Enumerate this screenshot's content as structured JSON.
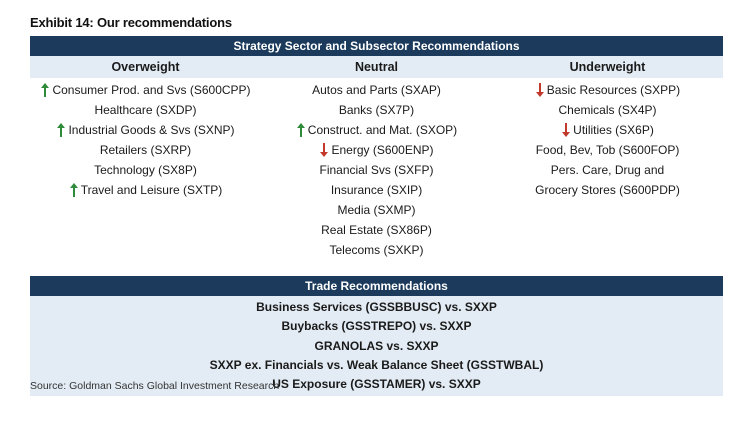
{
  "exhibit_title": "Exhibit 14: Our recommendations",
  "strategy_header": "Strategy Sector and Subsector Recommendations",
  "columns": [
    {
      "header": "Overweight",
      "items": [
        {
          "text": "Consumer Prod. and Svs (S600CPP)",
          "arrow": "up"
        },
        {
          "text": "Healthcare (SXDP)",
          "arrow": ""
        },
        {
          "text": "Industrial Goods & Svs (SXNP)",
          "arrow": "up"
        },
        {
          "text": "Retailers (SXRP)",
          "arrow": ""
        },
        {
          "text": "Technology (SX8P)",
          "arrow": ""
        },
        {
          "text": "Travel and Leisure (SXTP)",
          "arrow": "up"
        }
      ]
    },
    {
      "header": "Neutral",
      "items": [
        {
          "text": "Autos and Parts (SXAP)",
          "arrow": ""
        },
        {
          "text": "Banks (SX7P)",
          "arrow": ""
        },
        {
          "text": "Construct. and Mat. (SXOP)",
          "arrow": "up"
        },
        {
          "text": "Energy (S600ENP)",
          "arrow": "down"
        },
        {
          "text": "Financial Svs (SXFP)",
          "arrow": ""
        },
        {
          "text": "Insurance (SXIP)",
          "arrow": ""
        },
        {
          "text": "Media (SXMP)",
          "arrow": ""
        },
        {
          "text": "Real Estate (SX86P)",
          "arrow": ""
        },
        {
          "text": "Telecoms (SXKP)",
          "arrow": ""
        }
      ]
    },
    {
      "header": "Underweight",
      "items": [
        {
          "text": "Basic Resources (SXPP)",
          "arrow": "down"
        },
        {
          "text": "Chemicals (SX4P)",
          "arrow": ""
        },
        {
          "text": "Utilities (SX6P)",
          "arrow": "down"
        },
        {
          "text": "Food, Bev, Tob (S600FOP)",
          "arrow": ""
        },
        {
          "text": "Pers. Care, Drug and",
          "arrow": ""
        },
        {
          "text": "Grocery Stores (S600PDP)",
          "arrow": ""
        }
      ]
    }
  ],
  "trade_header": "Trade Recommendations",
  "trades": [
    "Business Services (GSSBBUSC) vs. SXXP",
    "Buybacks (GSSTREPO) vs. SXXP",
    "GRANOLAS vs. SXXP",
    "SXXP ex. Financials vs. Weak Balance Sheet (GSSTWBAL)",
    "US Exposure (GSSTAMER) vs. SXXP"
  ],
  "source": "Source: Goldman Sachs Global Investment Research",
  "colors": {
    "header_bar": "#1b3a5c",
    "band": "#e3ecf4",
    "arrow_up": "#2e8b3a",
    "arrow_down": "#c0392b"
  },
  "icons": {
    "up": "arrow-up-icon",
    "down": "arrow-down-icon"
  }
}
